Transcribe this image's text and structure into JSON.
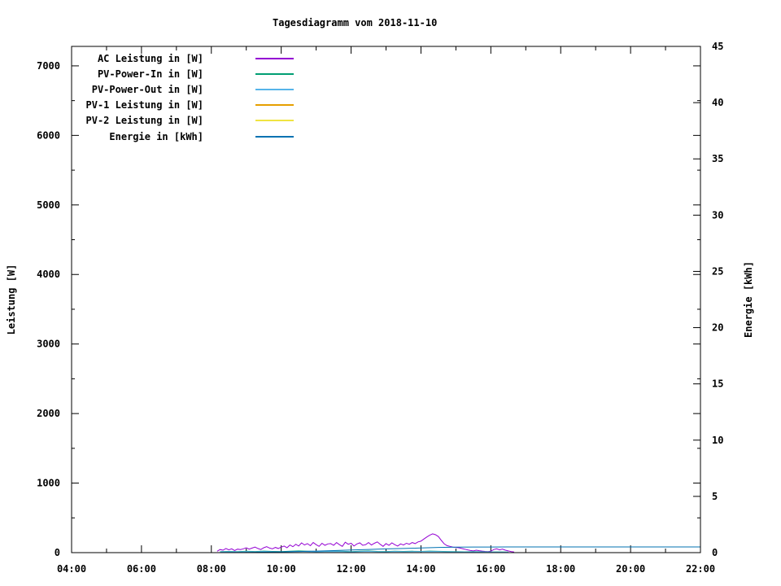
{
  "page": {
    "background": "#ffffff",
    "text_color": "#000000"
  },
  "chart_data": {
    "type": "line",
    "title": "Tagesdiagramm vom 2018-11-10",
    "grid": false,
    "legend": {
      "position": "top-left"
    },
    "x_axis": {
      "unit": "time-of-day",
      "range_hours": [
        4,
        22
      ],
      "major_ticks": [
        4,
        6,
        8,
        10,
        12,
        14,
        16,
        18,
        20,
        22
      ],
      "major_tick_labels": [
        "04:00",
        "06:00",
        "08:00",
        "10:00",
        "12:00",
        "14:00",
        "16:00",
        "18:00",
        "20:00",
        "22:00"
      ],
      "minor_ticks": [
        5,
        7,
        9,
        11,
        13,
        15,
        17,
        19,
        21
      ]
    },
    "y_left": {
      "label": "Leistung [W]",
      "range": [
        0,
        7280
      ],
      "major_ticks": [
        0,
        1000,
        2000,
        3000,
        4000,
        5000,
        6000,
        7000
      ],
      "tick_labels": [
        "0",
        "1000",
        "2000",
        "3000",
        "4000",
        "5000",
        "6000",
        "7000"
      ],
      "minor_ticks": [
        500,
        1500,
        2500,
        3500,
        4500,
        5500,
        6500
      ]
    },
    "y_right": {
      "label": "Energie [kWh]",
      "range": [
        0,
        45
      ],
      "major_ticks": [
        0,
        5,
        10,
        15,
        20,
        25,
        30,
        35,
        40,
        45
      ],
      "tick_labels": [
        "0",
        "5",
        "10",
        "15",
        "20",
        "25",
        "30",
        "35",
        "40",
        "45"
      ]
    },
    "series": [
      {
        "name": "AC Leistung in [W]",
        "color": "#9400d3",
        "axis": "left",
        "x_start": 8.167,
        "x_step": 0.08333,
        "values": [
          20,
          45,
          35,
          60,
          40,
          55,
          30,
          50,
          45,
          55,
          70,
          50,
          65,
          80,
          60,
          45,
          70,
          85,
          65,
          55,
          75,
          60,
          80,
          95,
          70,
          110,
          85,
          120,
          95,
          140,
          110,
          130,
          100,
          145,
          115,
          90,
          135,
          105,
          125,
          130,
          105,
          145,
          115,
          90,
          150,
          120,
          135,
          95,
          125,
          140,
          105,
          115,
          145,
          110,
          135,
          155,
          120,
          90,
          130,
          105,
          140,
          115,
          95,
          125,
          110,
          135,
          120,
          145,
          130,
          155,
          165,
          195,
          225,
          250,
          270,
          258,
          230,
          175,
          125,
          100,
          90,
          80,
          75,
          70,
          60,
          50,
          40,
          30,
          25,
          35,
          28,
          22,
          18,
          15,
          20,
          45,
          55,
          40,
          50,
          35,
          25,
          15,
          8
        ]
      },
      {
        "name": "PV-Power-In in [W]",
        "color": "#009e73",
        "axis": "left",
        "x_start": 8.25,
        "x_step": 0.25,
        "values": [
          14,
          18,
          15,
          20,
          16,
          22,
          18,
          14,
          20,
          24,
          20,
          16,
          18,
          22,
          19,
          15,
          20,
          23,
          18,
          16,
          21,
          17,
          20,
          18,
          22,
          19,
          16,
          14,
          12,
          15,
          13,
          11,
          10,
          8
        ]
      },
      {
        "name": "PV-Power-Out in [W]",
        "color": "#56b4e9",
        "axis": "left",
        "x_start": 8.25,
        "x_step": 0.25,
        "values": [
          10,
          13,
          11,
          15,
          12,
          16,
          13,
          10,
          15,
          18,
          15,
          12,
          14,
          16,
          14,
          11,
          15,
          17,
          13,
          12,
          16,
          13,
          15,
          14,
          16,
          14,
          12,
          10,
          9,
          11,
          10,
          8,
          7,
          6
        ]
      },
      {
        "name": "PV-1 Leistung in [W]",
        "color": "#e69f00",
        "axis": "left",
        "values": []
      },
      {
        "name": "PV-2 Leistung in [W]",
        "color": "#f0e442",
        "axis": "left",
        "values": []
      },
      {
        "name": "Energie in [kWh]",
        "color": "#0072b2",
        "axis": "right",
        "x": [
          8.2,
          9,
          9.5,
          10,
          10.5,
          11,
          11.5,
          12,
          12.5,
          13,
          13.5,
          14,
          14.5,
          15,
          15.5,
          16,
          16.5,
          17,
          22
        ],
        "values": [
          0,
          0.02,
          0.04,
          0.07,
          0.1,
          0.14,
          0.18,
          0.23,
          0.28,
          0.33,
          0.37,
          0.41,
          0.46,
          0.49,
          0.5,
          0.5,
          0.51,
          0.51,
          0.51
        ]
      }
    ]
  }
}
